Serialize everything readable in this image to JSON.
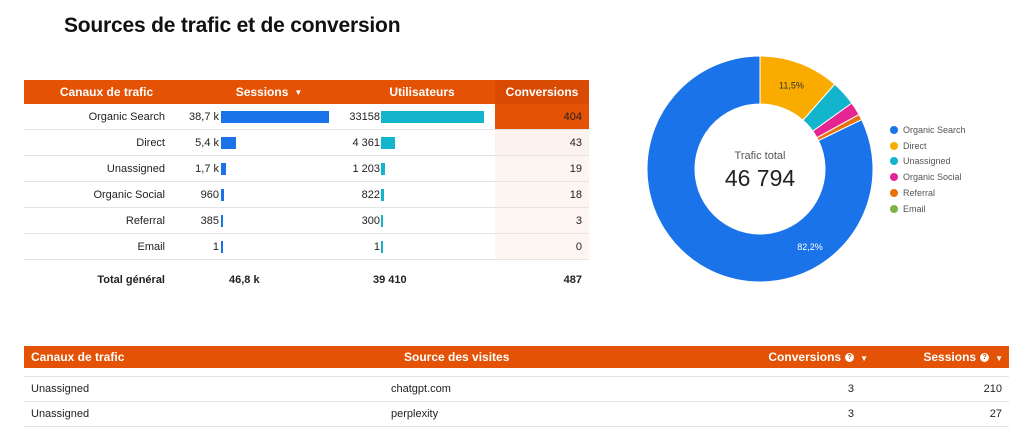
{
  "title": "Sources de trafic et de conversion",
  "table1": {
    "headers": {
      "channel": "Canaux de trafic",
      "sessions": "Sessions",
      "users": "Utilisateurs",
      "conversions": "Conversions"
    },
    "rows": [
      {
        "channel": "Organic Search",
        "sessions": "38,7 k",
        "sessions_value": 38700,
        "users": "33158",
        "users_value": 33158,
        "conversions": "404",
        "conversions_value": 404
      },
      {
        "channel": "Direct",
        "sessions": "5,4 k",
        "sessions_value": 5400,
        "users": "4 361",
        "users_value": 4361,
        "conversions": "43",
        "conversions_value": 43
      },
      {
        "channel": "Unassigned",
        "sessions": "1,7 k",
        "sessions_value": 1700,
        "users": "1 203",
        "users_value": 1203,
        "conversions": "19",
        "conversions_value": 19
      },
      {
        "channel": "Organic Social",
        "sessions": "960",
        "sessions_value": 960,
        "users": "822",
        "users_value": 822,
        "conversions": "18",
        "conversions_value": 18
      },
      {
        "channel": "Referral",
        "sessions": "385",
        "sessions_value": 385,
        "users": "300",
        "users_value": 300,
        "conversions": "3",
        "conversions_value": 3
      },
      {
        "channel": "Email",
        "sessions": "1",
        "sessions_value": 1,
        "users": "1",
        "users_value": 1,
        "conversions": "0",
        "conversions_value": 0
      }
    ],
    "total": {
      "label": "Total général",
      "sessions": "46,8 k",
      "users": "39 410",
      "conversions": "487"
    },
    "colors": {
      "sessions_bar": "#1a73e8",
      "users_bar": "#12b5cb",
      "header": "#e35205",
      "conversion_heat": "#e35205"
    }
  },
  "chart_data": {
    "type": "pie",
    "center_label": "Trafic total",
    "center_value": "46 794",
    "categories": [
      "Organic Search",
      "Direct",
      "Unassigned",
      "Organic Social",
      "Referral",
      "Email"
    ],
    "values": [
      82.2,
      11.5,
      3.6,
      1.9,
      0.8,
      0.0
    ],
    "slice_labels": [
      "82,2%",
      "11,5%",
      "",
      "",
      "",
      ""
    ],
    "colors": [
      "#1a73e8",
      "#f9ab00",
      "#12b5cb",
      "#e52592",
      "#e8710a",
      "#7cb342"
    ],
    "legend_position": "right"
  },
  "table2": {
    "headers": {
      "channel": "Canaux de trafic",
      "source": "Source des visites",
      "conversions": "Conversions",
      "sessions": "Sessions"
    },
    "rows": [
      {
        "channel": "Unassigned",
        "source": "chatgpt.com",
        "conversions": "3",
        "sessions": "210"
      },
      {
        "channel": "Unassigned",
        "source": "perplexity",
        "conversions": "3",
        "sessions": "27"
      }
    ]
  }
}
